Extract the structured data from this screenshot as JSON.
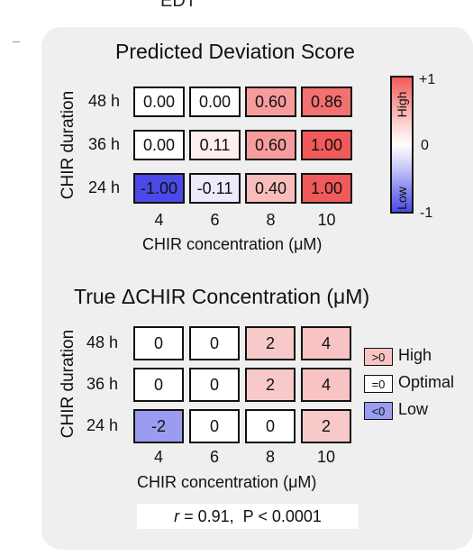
{
  "top_label": "EDT",
  "chart_data": [
    {
      "type": "heatmap",
      "title": "Predicted Deviation Score",
      "xlabel": "CHIR concentration (μM)",
      "ylabel": "CHIR duration",
      "x_categories": [
        "4",
        "6",
        "8",
        "10"
      ],
      "y_categories": [
        "48 h",
        "36 h",
        "24 h"
      ],
      "values": [
        [
          "0.00",
          "0.00",
          "0.60",
          "0.86"
        ],
        [
          "0.00",
          "0.11",
          "0.60",
          "1.00"
        ],
        [
          "-1.00",
          "-0.11",
          "0.40",
          "1.00"
        ]
      ],
      "colorbar": {
        "max_label": "+1",
        "mid_label": "0",
        "min_label": "-1",
        "high_word": "High",
        "low_word": "Low",
        "high_color": "#f15a5a",
        "mid_color": "#ffffff",
        "low_color": "#4a4ae8"
      }
    },
    {
      "type": "heatmap",
      "title": "True ΔCHIR Concentration (μM)",
      "xlabel": "CHIR concentration (μM)",
      "ylabel": "CHIR duration",
      "x_categories": [
        "4",
        "6",
        "8",
        "10"
      ],
      "y_categories": [
        "48 h",
        "36 h",
        "24 h"
      ],
      "values": [
        [
          "0",
          "0",
          "2",
          "4"
        ],
        [
          "0",
          "0",
          "2",
          "4"
        ],
        [
          "-2",
          "0",
          "0",
          "2"
        ]
      ],
      "legend": [
        {
          "box": ">0",
          "label": "High",
          "color": "#f8c3c3"
        },
        {
          "box": "=0",
          "label": "Optimal",
          "color": "#ffffff"
        },
        {
          "box": "<0",
          "label": "Low",
          "color": "#9a9cf0"
        }
      ]
    }
  ],
  "stats": {
    "r_symbol": "r",
    "text": " = 0.91,  P < 0.0001"
  }
}
